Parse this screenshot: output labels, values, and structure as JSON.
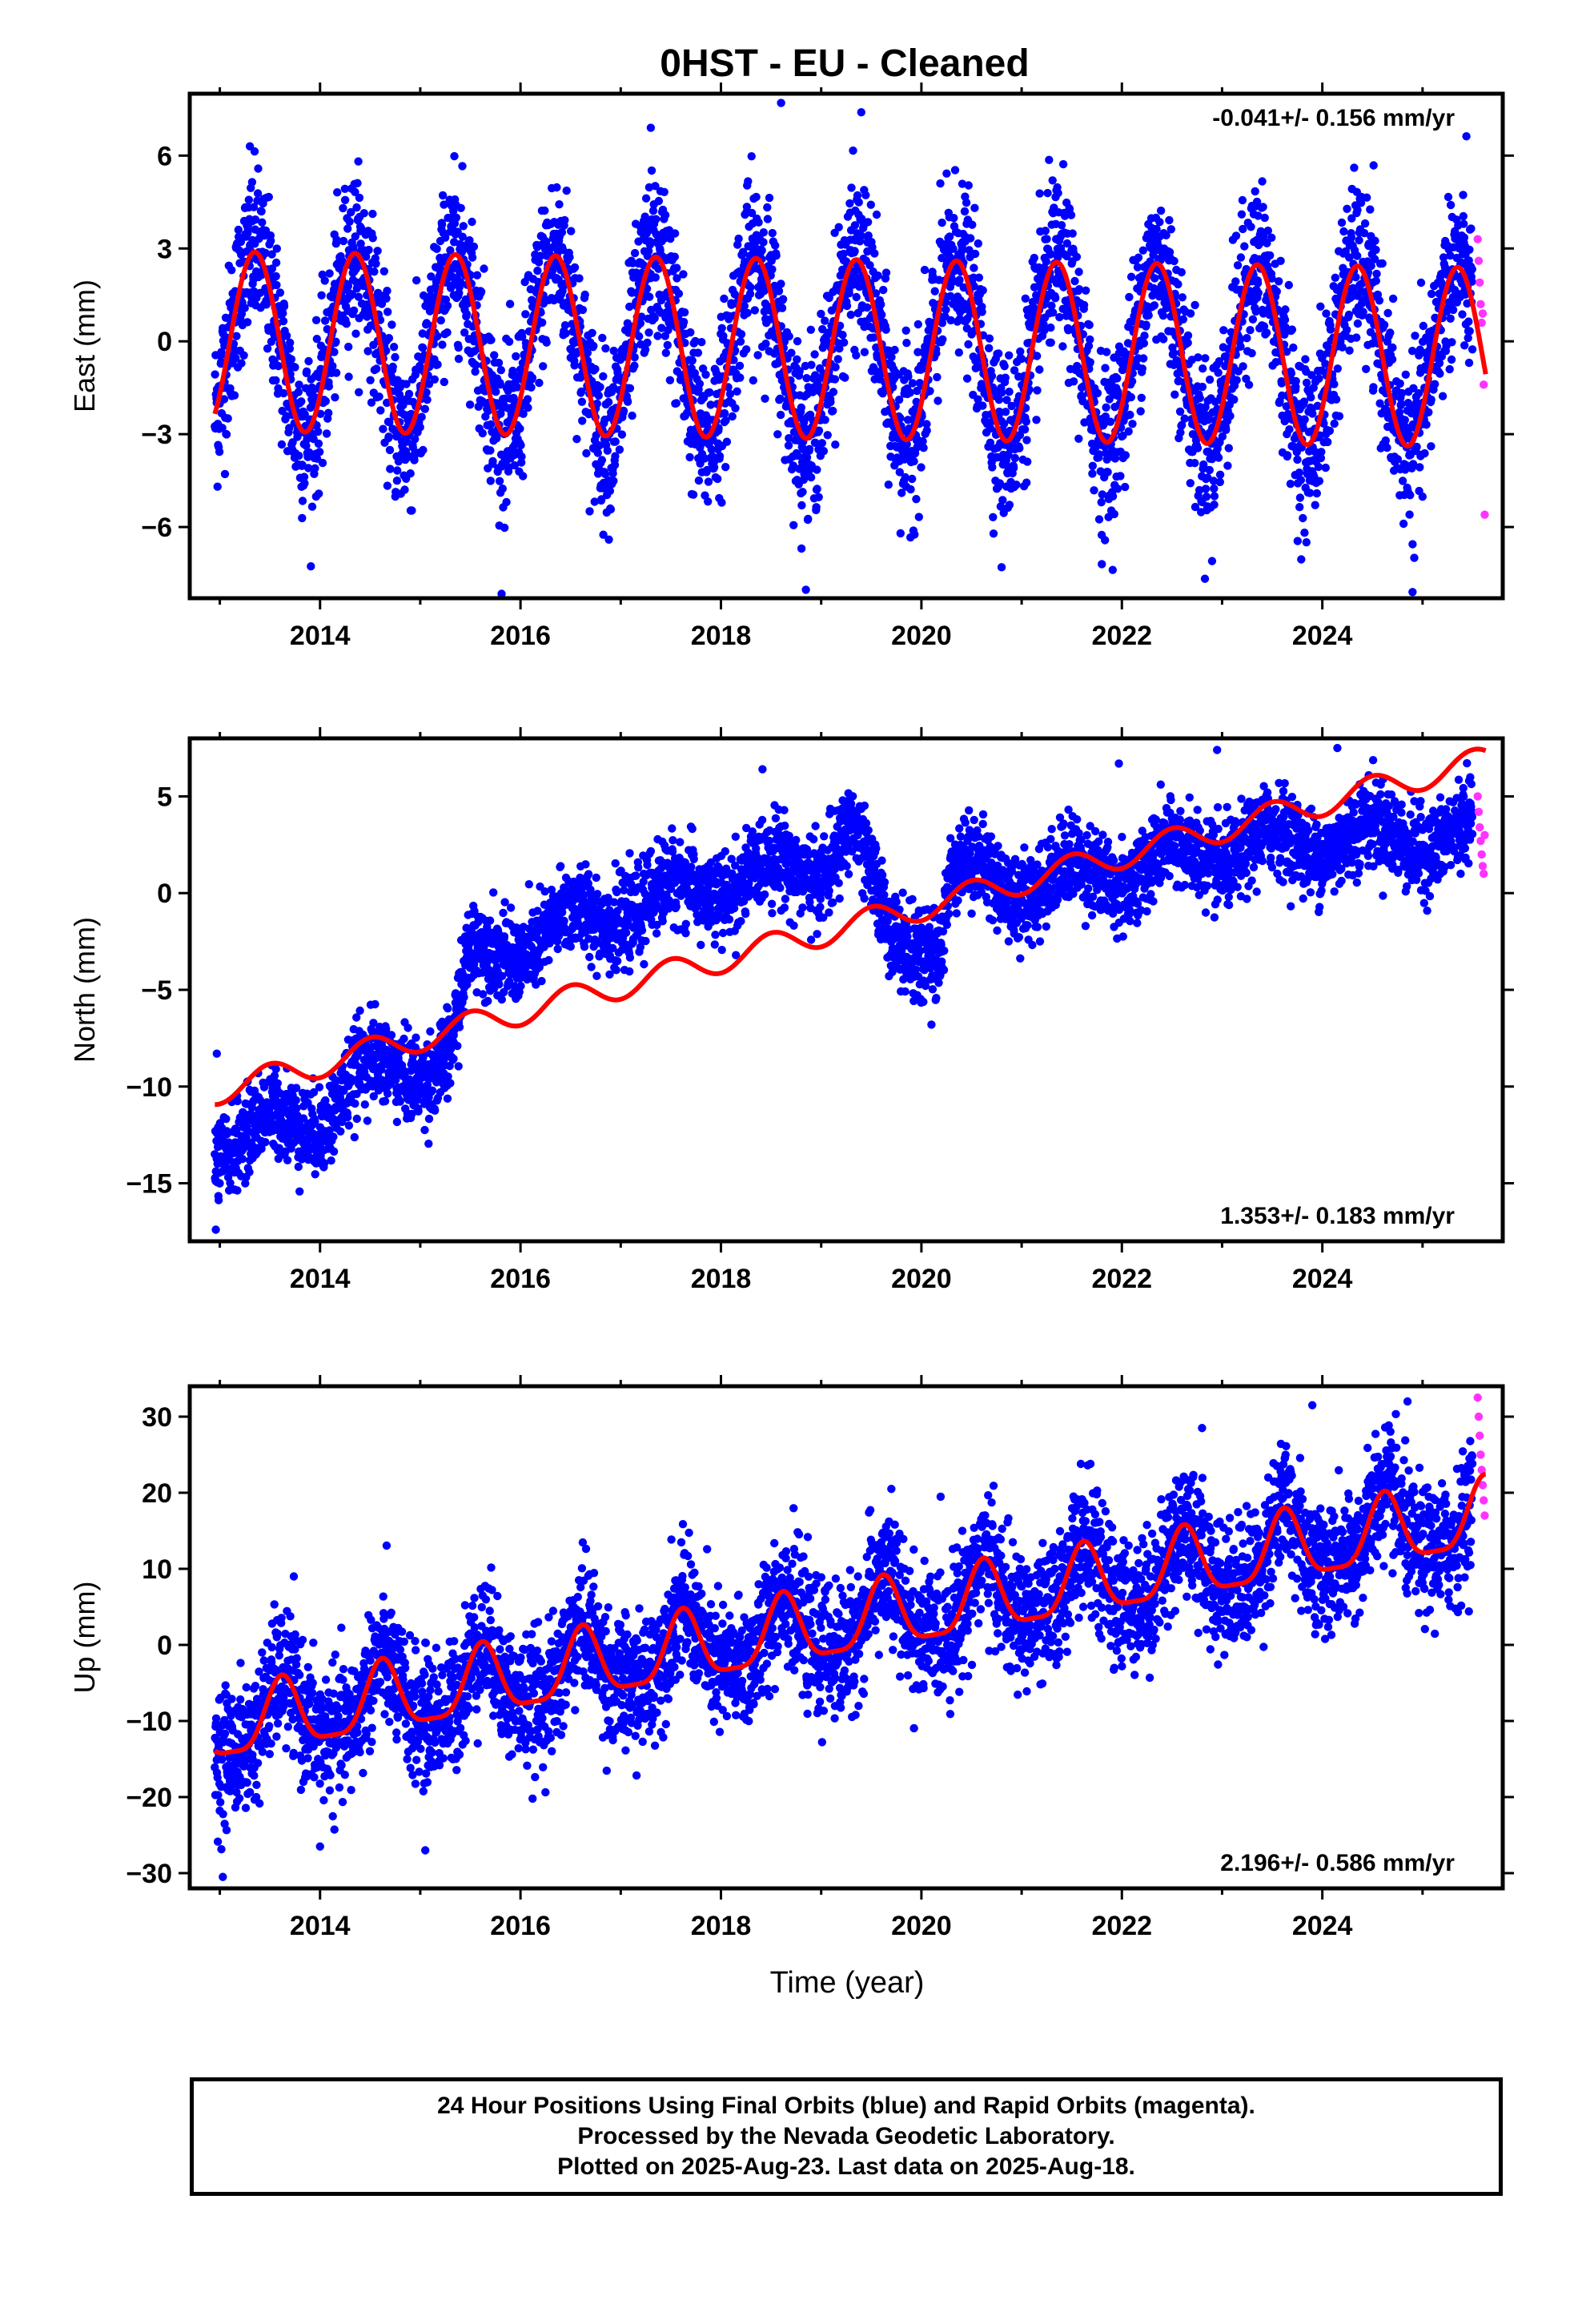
{
  "title": "0HST  - EU - Cleaned",
  "x_axis_label": "Time (year)",
  "footer": {
    "line1": "24 Hour Positions Using Final Orbits (blue) and Rapid Orbits (magenta).",
    "line2": "Processed by the Nevada Geodetic Laboratory.",
    "line3": "Plotted on 2025-Aug-23. Last data on 2025-Aug-18."
  },
  "colors": {
    "final_orbits": "#0000ff",
    "rapid_orbits": "#ff33ff",
    "model": "#ff0000"
  },
  "chart_data": [
    {
      "type": "scatter",
      "component": "east",
      "ylabel": "East (mm)",
      "rate_text": "-0.041+/- 0.156 mm/yr",
      "rate_position": "top-right",
      "xlim": [
        2012.7,
        2025.8
      ],
      "ylim": [
        -8.3,
        8.0
      ],
      "x_ticks": [
        2014,
        2016,
        2018,
        2020,
        2022,
        2024
      ],
      "y_ticks": [
        -6,
        -3,
        0,
        3,
        6
      ],
      "y_tick_labels": [
        "−6",
        "−3",
        "0",
        "3",
        "6"
      ],
      "grid": false,
      "data_start": 2012.95,
      "data_end": 2025.63,
      "rapid_start": 2025.5,
      "model": {
        "offset": 0.0,
        "rate_mm_per_yr": -0.041,
        "annual_amplitude": 2.9,
        "annual_peak": 2013.35,
        "semiannual_amplitude": 0.0
      },
      "scatter_spread": 1.3,
      "outliers": [
        {
          "x": 2018.6,
          "y": 7.7
        },
        {
          "x": 2019.4,
          "y": 7.4
        },
        {
          "x": 2017.3,
          "y": 6.9
        },
        {
          "x": 2013.3,
          "y": 6.3
        },
        {
          "x": 2020.8,
          "y": -7.3
        },
        {
          "x": 2022.9,
          "y": -7.1
        },
        {
          "x": 2024.9,
          "y": -8.1
        },
        {
          "x": 2021.8,
          "y": -7.2
        }
      ],
      "rapid_points": [
        {
          "x": 2025.55,
          "y": 3.3
        },
        {
          "x": 2025.56,
          "y": 2.6
        },
        {
          "x": 2025.57,
          "y": 1.9
        },
        {
          "x": 2025.58,
          "y": 1.2
        },
        {
          "x": 2025.59,
          "y": 0.6
        },
        {
          "x": 2025.6,
          "y": 0.9
        },
        {
          "x": 2025.61,
          "y": -1.4
        },
        {
          "x": 2025.62,
          "y": -5.6
        }
      ]
    },
    {
      "type": "scatter",
      "component": "north",
      "ylabel": "North (mm)",
      "rate_text": "1.353+/- 0.183 mm/yr",
      "rate_position": "bottom-right",
      "xlim": [
        2012.7,
        2025.8
      ],
      "ylim": [
        -18.0,
        8.0
      ],
      "x_ticks": [
        2014,
        2016,
        2018,
        2020,
        2022,
        2024
      ],
      "y_ticks": [
        -15,
        -10,
        -5,
        0,
        5
      ],
      "y_tick_labels": [
        "−15",
        "−10",
        "−5",
        "0",
        "5"
      ],
      "grid": false,
      "data_start": 2012.95,
      "data_end": 2025.63,
      "rapid_start": 2025.5,
      "model": {
        "offset": -10.2,
        "rate_mm_per_yr": 1.353,
        "annual_amplitude": 0.7,
        "annual_peak": 2013.5,
        "semiannual_amplitude": 0.0
      },
      "observed_trend": [
        {
          "x": 2012.95,
          "y": -13.0
        },
        {
          "x": 2014.0,
          "y": -11.5
        },
        {
          "x": 2014.4,
          "y": -9.5
        },
        {
          "x": 2015.3,
          "y": -8.5
        },
        {
          "x": 2015.5,
          "y": -3.5
        },
        {
          "x": 2016.3,
          "y": -2.0
        },
        {
          "x": 2017.0,
          "y": -0.8
        },
        {
          "x": 2018.0,
          "y": 0.5
        },
        {
          "x": 2019.0,
          "y": 1.5
        },
        {
          "x": 2019.3,
          "y": 3.5
        },
        {
          "x": 2019.5,
          "y": 0.0
        },
        {
          "x": 2019.7,
          "y": -2.3
        },
        {
          "x": 2020.2,
          "y": -2.5
        },
        {
          "x": 2020.3,
          "y": 1.0
        },
        {
          "x": 2021.0,
          "y": 0.5
        },
        {
          "x": 2022.0,
          "y": 1.2
        },
        {
          "x": 2023.0,
          "y": 2.2
        },
        {
          "x": 2024.0,
          "y": 2.8
        },
        {
          "x": 2025.63,
          "y": 3.0
        }
      ],
      "scatter_spread": 1.1,
      "outliers": [
        {
          "x": 2012.96,
          "y": -17.4
        },
        {
          "x": 2012.97,
          "y": -8.3
        },
        {
          "x": 2024.15,
          "y": 7.5
        },
        {
          "x": 2022.95,
          "y": 7.4
        },
        {
          "x": 2021.97,
          "y": 6.7
        },
        {
          "x": 2020.1,
          "y": -6.8
        }
      ],
      "rapid_points": [
        {
          "x": 2025.55,
          "y": 5.0
        },
        {
          "x": 2025.56,
          "y": 4.2
        },
        {
          "x": 2025.57,
          "y": 3.4
        },
        {
          "x": 2025.58,
          "y": 2.7
        },
        {
          "x": 2025.59,
          "y": 2.0
        },
        {
          "x": 2025.6,
          "y": 1.4
        },
        {
          "x": 2025.61,
          "y": 1.0
        },
        {
          "x": 2025.62,
          "y": 3.0
        }
      ]
    },
    {
      "type": "scatter",
      "component": "up",
      "ylabel": "Up (mm)",
      "rate_text": "2.196+/- 0.586 mm/yr",
      "rate_position": "bottom-right",
      "xlim": [
        2012.7,
        2025.8
      ],
      "ylim": [
        -32.0,
        34.0
      ],
      "x_ticks": [
        2014,
        2016,
        2018,
        2020,
        2022,
        2024
      ],
      "y_ticks": [
        -30,
        -20,
        -10,
        0,
        10,
        20,
        30
      ],
      "y_tick_labels": [
        "−30",
        "−20",
        "−10",
        "0",
        "10",
        "20",
        "30"
      ],
      "grid": false,
      "data_start": 2012.95,
      "data_end": 2025.63,
      "rapid_start": 2025.5,
      "model": {
        "offset": -11.0,
        "rate_mm_per_yr": 2.196,
        "annual_amplitude": 4.5,
        "annual_peak": 2013.62,
        "semiannual_amplitude": 1.2
      },
      "scatter_spread": 4.2,
      "outliers": [
        {
          "x": 2013.03,
          "y": -30.5
        },
        {
          "x": 2024.85,
          "y": 32.0
        },
        {
          "x": 2023.9,
          "y": 31.5
        },
        {
          "x": 2022.8,
          "y": 28.5
        },
        {
          "x": 2019.7,
          "y": 20.5
        },
        {
          "x": 2014.0,
          "y": -26.5
        },
        {
          "x": 2015.05,
          "y": -27.0
        }
      ],
      "rapid_points": [
        {
          "x": 2025.55,
          "y": 32.5
        },
        {
          "x": 2025.56,
          "y": 30.0
        },
        {
          "x": 2025.57,
          "y": 27.5
        },
        {
          "x": 2025.58,
          "y": 25.0
        },
        {
          "x": 2025.59,
          "y": 23.0
        },
        {
          "x": 2025.6,
          "y": 21.0
        },
        {
          "x": 2025.61,
          "y": 19.0
        },
        {
          "x": 2025.62,
          "y": 17.0
        }
      ]
    }
  ]
}
